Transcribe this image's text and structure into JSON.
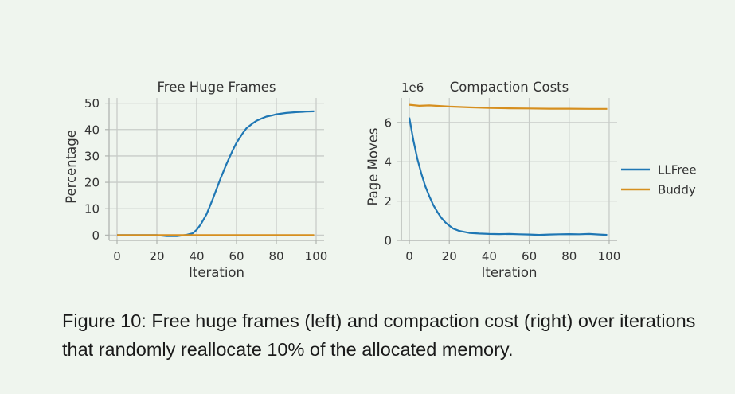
{
  "caption": "Figure 10: Free huge frames (left) and compaction cost (right) over iterations that randomly reallocate 10% of the allocated memory.",
  "colors": {
    "llfree": "#1f77b4",
    "buddy": "#d68f1f",
    "grid": "#c8ccc8",
    "axis": "#b0b4b0"
  },
  "legend": {
    "placement": "right",
    "entries": [
      "LLFree",
      "Buddy"
    ]
  },
  "chart_data": [
    {
      "type": "line",
      "title": "Free Huge Frames",
      "xlabel": "Iteration",
      "ylabel": "Percentage",
      "xlim": [
        -4,
        104
      ],
      "ylim": [
        -2,
        52
      ],
      "xticks": [
        0,
        20,
        40,
        60,
        80,
        100
      ],
      "yticks": [
        0,
        10,
        20,
        30,
        40,
        50
      ],
      "grid": true,
      "offset_label": "",
      "series": [
        {
          "name": "LLFree",
          "x": [
            0,
            5,
            10,
            15,
            20,
            25,
            30,
            35,
            38,
            40,
            42,
            45,
            48,
            50,
            52,
            55,
            58,
            60,
            63,
            65,
            68,
            70,
            73,
            75,
            78,
            80,
            85,
            90,
            95,
            99
          ],
          "y": [
            0,
            0,
            0,
            0,
            0,
            -0.4,
            -0.4,
            0.1,
            0.7,
            2,
            4,
            8,
            13.5,
            17.5,
            21.5,
            27,
            32,
            35,
            38.5,
            40.5,
            42.3,
            43.3,
            44.3,
            44.9,
            45.4,
            45.8,
            46.3,
            46.6,
            46.8,
            46.9
          ]
        },
        {
          "name": "Buddy",
          "x": [
            0,
            99
          ],
          "y": [
            0,
            0
          ]
        }
      ]
    },
    {
      "type": "line",
      "title": "Compaction Costs",
      "xlabel": "Iteration",
      "ylabel": "Page Moves",
      "xlim": [
        -4,
        104
      ],
      "ylim": [
        0,
        7.25
      ],
      "xticks": [
        0,
        20,
        40,
        60,
        80,
        100
      ],
      "yticks": [
        0,
        2,
        4,
        6
      ],
      "grid": true,
      "offset_label": "1e6",
      "series": [
        {
          "name": "LLFree",
          "x": [
            0,
            2,
            4,
            6,
            8,
            10,
            12,
            14,
            16,
            18,
            20,
            22,
            25,
            28,
            30,
            35,
            40,
            45,
            50,
            55,
            60,
            65,
            70,
            75,
            80,
            85,
            90,
            95,
            99
          ],
          "y": [
            6.25,
            5.1,
            4.15,
            3.4,
            2.75,
            2.25,
            1.8,
            1.45,
            1.15,
            0.92,
            0.75,
            0.6,
            0.48,
            0.42,
            0.38,
            0.35,
            0.33,
            0.32,
            0.33,
            0.31,
            0.3,
            0.28,
            0.3,
            0.31,
            0.32,
            0.31,
            0.33,
            0.3,
            0.28
          ]
        },
        {
          "name": "Buddy",
          "x": [
            0,
            5,
            10,
            15,
            20,
            30,
            40,
            50,
            60,
            70,
            80,
            90,
            99
          ],
          "y": [
            6.9,
            6.85,
            6.87,
            6.84,
            6.81,
            6.77,
            6.74,
            6.72,
            6.71,
            6.7,
            6.7,
            6.69,
            6.69
          ]
        }
      ]
    }
  ]
}
